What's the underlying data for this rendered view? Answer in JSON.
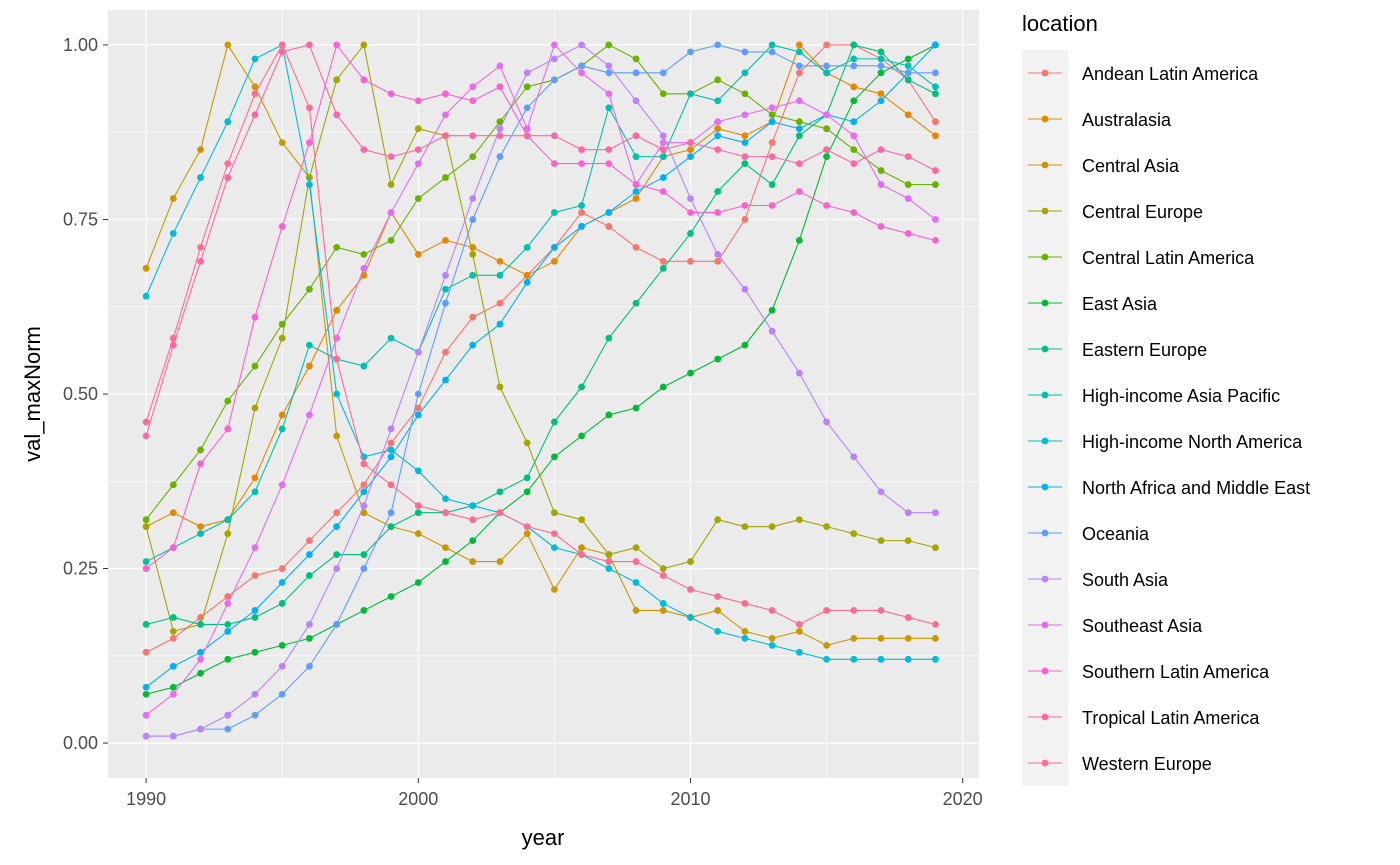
{
  "chart_data": {
    "type": "line",
    "xlabel": "year",
    "ylabel": "val_maxNorm",
    "legend_title": "location",
    "legend_position": "right",
    "grid": true,
    "xlim": [
      1988.6,
      2020.6
    ],
    "ylim": [
      -0.05,
      1.05
    ],
    "x_ticks": [
      1990,
      2000,
      2010,
      2020
    ],
    "y_ticks": [
      0,
      0.25,
      0.5,
      0.75,
      1
    ],
    "x_tick_labels": [
      "1990",
      "2000",
      "2010",
      "2020"
    ],
    "y_tick_labels": [
      "0.00",
      "0.25",
      "0.50",
      "0.75",
      "1.00"
    ],
    "x": [
      1990,
      1991,
      1992,
      1993,
      1994,
      1995,
      1996,
      1997,
      1998,
      1999,
      2000,
      2001,
      2002,
      2003,
      2004,
      2005,
      2006,
      2007,
      2008,
      2009,
      2010,
      2011,
      2012,
      2013,
      2014,
      2015,
      2016,
      2017,
      2018,
      2019
    ],
    "series": [
      {
        "name": "Andean Latin America",
        "color": "#F8766D",
        "values": [
          0.13,
          0.15,
          0.18,
          0.21,
          0.24,
          0.25,
          0.29,
          0.33,
          0.37,
          0.43,
          0.48,
          0.56,
          0.61,
          0.63,
          0.67,
          0.71,
          0.76,
          0.74,
          0.71,
          0.69,
          0.69,
          0.69,
          0.75,
          0.86,
          0.96,
          1.0,
          1.0,
          0.98,
          0.95,
          0.89
        ]
      },
      {
        "name": "Australasia",
        "color": "#E58700",
        "values": [
          0.31,
          0.33,
          0.31,
          0.32,
          0.38,
          0.47,
          0.54,
          0.62,
          0.67,
          0.76,
          0.7,
          0.72,
          0.71,
          0.69,
          0.67,
          0.69,
          0.74,
          0.76,
          0.78,
          0.84,
          0.85,
          0.88,
          0.87,
          0.89,
          1.0,
          0.96,
          0.94,
          0.93,
          0.9,
          0.87
        ]
      },
      {
        "name": "Central Asia",
        "color": "#C99800",
        "values": [
          0.68,
          0.78,
          0.85,
          1.0,
          0.94,
          0.86,
          0.81,
          0.44,
          0.33,
          0.31,
          0.3,
          0.28,
          0.26,
          0.26,
          0.3,
          0.22,
          0.28,
          0.27,
          0.19,
          0.19,
          0.18,
          0.19,
          0.16,
          0.15,
          0.16,
          0.14,
          0.15,
          0.15,
          0.15,
          0.15
        ]
      },
      {
        "name": "Central Europe",
        "color": "#A3A500",
        "values": [
          0.31,
          0.16,
          0.17,
          0.3,
          0.48,
          0.58,
          0.81,
          0.95,
          1.0,
          0.8,
          0.88,
          0.87,
          0.7,
          0.51,
          0.43,
          0.33,
          0.32,
          0.27,
          0.28,
          0.25,
          0.26,
          0.32,
          0.31,
          0.31,
          0.32,
          0.31,
          0.3,
          0.29,
          0.29,
          0.28
        ]
      },
      {
        "name": "Central Latin America",
        "color": "#6BB100",
        "values": [
          0.32,
          0.37,
          0.42,
          0.49,
          0.54,
          0.6,
          0.65,
          0.71,
          0.7,
          0.72,
          0.78,
          0.81,
          0.84,
          0.89,
          0.94,
          0.95,
          0.97,
          1.0,
          0.98,
          0.93,
          0.93,
          0.95,
          0.93,
          0.9,
          0.89,
          0.88,
          0.85,
          0.82,
          0.8,
          0.8
        ]
      },
      {
        "name": "East Asia",
        "color": "#00BA38",
        "values": [
          0.07,
          0.08,
          0.1,
          0.12,
          0.13,
          0.14,
          0.15,
          0.17,
          0.19,
          0.21,
          0.23,
          0.26,
          0.29,
          0.33,
          0.36,
          0.41,
          0.44,
          0.47,
          0.48,
          0.51,
          0.53,
          0.55,
          0.57,
          0.62,
          0.72,
          0.84,
          0.92,
          0.96,
          0.98,
          1.0
        ]
      },
      {
        "name": "Eastern Europe",
        "color": "#00BF7D",
        "values": [
          0.17,
          0.18,
          0.17,
          0.17,
          0.18,
          0.2,
          0.24,
          0.27,
          0.27,
          0.31,
          0.33,
          0.33,
          0.34,
          0.36,
          0.38,
          0.46,
          0.51,
          0.58,
          0.63,
          0.68,
          0.73,
          0.79,
          0.83,
          0.8,
          0.87,
          0.9,
          1.0,
          0.99,
          0.95,
          0.93
        ]
      },
      {
        "name": "High-income Asia Pacific",
        "color": "#00C0AF",
        "values": [
          0.26,
          0.28,
          0.3,
          0.32,
          0.36,
          0.45,
          0.57,
          0.55,
          0.54,
          0.58,
          0.56,
          0.65,
          0.67,
          0.67,
          0.71,
          0.76,
          0.77,
          0.91,
          0.84,
          0.84,
          0.93,
          0.92,
          0.96,
          1.0,
          0.99,
          0.96,
          0.98,
          0.98,
          0.97,
          0.94
        ]
      },
      {
        "name": "High-income North America",
        "color": "#00BCD8",
        "values": [
          0.64,
          0.73,
          0.81,
          0.89,
          0.98,
          1.0,
          0.8,
          0.5,
          0.41,
          0.42,
          0.39,
          0.35,
          0.34,
          0.33,
          0.31,
          0.28,
          0.27,
          0.25,
          0.23,
          0.2,
          0.18,
          0.16,
          0.15,
          0.14,
          0.13,
          0.12,
          0.12,
          0.12,
          0.12,
          0.12
        ]
      },
      {
        "name": "North Africa and Middle East",
        "color": "#00B0F6",
        "values": [
          0.08,
          0.11,
          0.13,
          0.16,
          0.19,
          0.23,
          0.27,
          0.31,
          0.36,
          0.41,
          0.47,
          0.52,
          0.57,
          0.6,
          0.66,
          0.71,
          0.74,
          0.76,
          0.79,
          0.81,
          0.84,
          0.87,
          0.86,
          0.89,
          0.88,
          0.9,
          0.89,
          0.92,
          0.96,
          1.0
        ]
      },
      {
        "name": "Oceania",
        "color": "#619CFF",
        "values": [
          0.01,
          0.01,
          0.02,
          0.02,
          0.04,
          0.07,
          0.11,
          0.17,
          0.25,
          0.33,
          0.5,
          0.63,
          0.75,
          0.84,
          0.91,
          0.95,
          0.97,
          0.96,
          0.96,
          0.96,
          0.99,
          1.0,
          0.99,
          0.99,
          0.97,
          0.97,
          0.97,
          0.97,
          0.96,
          0.96
        ]
      },
      {
        "name": "South Asia",
        "color": "#B983FF",
        "values": [
          0.01,
          0.01,
          0.02,
          0.04,
          0.07,
          0.11,
          0.17,
          0.25,
          0.34,
          0.45,
          0.56,
          0.67,
          0.78,
          0.88,
          0.96,
          0.98,
          1.0,
          0.97,
          0.92,
          0.87,
          0.78,
          0.7,
          0.65,
          0.59,
          0.53,
          0.46,
          0.41,
          0.36,
          0.33,
          0.33
        ]
      },
      {
        "name": "Southeast Asia",
        "color": "#E76BF3",
        "values": [
          0.04,
          0.07,
          0.12,
          0.2,
          0.28,
          0.37,
          0.47,
          0.58,
          0.68,
          0.76,
          0.83,
          0.9,
          0.94,
          0.97,
          0.88,
          1.0,
          0.96,
          0.93,
          0.8,
          0.86,
          0.86,
          0.89,
          0.9,
          0.91,
          0.92,
          0.9,
          0.87,
          0.8,
          0.78,
          0.75
        ]
      },
      {
        "name": "Southern Latin America",
        "color": "#FD61D1",
        "values": [
          0.25,
          0.28,
          0.4,
          0.45,
          0.61,
          0.74,
          0.86,
          1.0,
          0.95,
          0.93,
          0.92,
          0.93,
          0.92,
          0.94,
          0.87,
          0.83,
          0.83,
          0.83,
          0.8,
          0.79,
          0.76,
          0.76,
          0.77,
          0.77,
          0.79,
          0.77,
          0.76,
          0.74,
          0.73,
          0.72
        ]
      },
      {
        "name": "Tropical Latin America",
        "color": "#FF67A4",
        "values": [
          0.44,
          0.57,
          0.69,
          0.81,
          0.9,
          0.99,
          1.0,
          0.9,
          0.85,
          0.84,
          0.85,
          0.87,
          0.87,
          0.87,
          0.87,
          0.87,
          0.85,
          0.85,
          0.87,
          0.85,
          0.86,
          0.85,
          0.84,
          0.84,
          0.83,
          0.85,
          0.83,
          0.85,
          0.84,
          0.82
        ]
      },
      {
        "name": "Western Europe",
        "color": "#FF6C91",
        "values": [
          0.46,
          0.58,
          0.71,
          0.83,
          0.93,
          1.0,
          0.91,
          0.55,
          0.4,
          0.37,
          0.34,
          0.33,
          0.32,
          0.33,
          0.31,
          0.3,
          0.27,
          0.26,
          0.26,
          0.24,
          0.22,
          0.21,
          0.2,
          0.19,
          0.17,
          0.19,
          0.19,
          0.19,
          0.18,
          0.17
        ]
      }
    ]
  }
}
